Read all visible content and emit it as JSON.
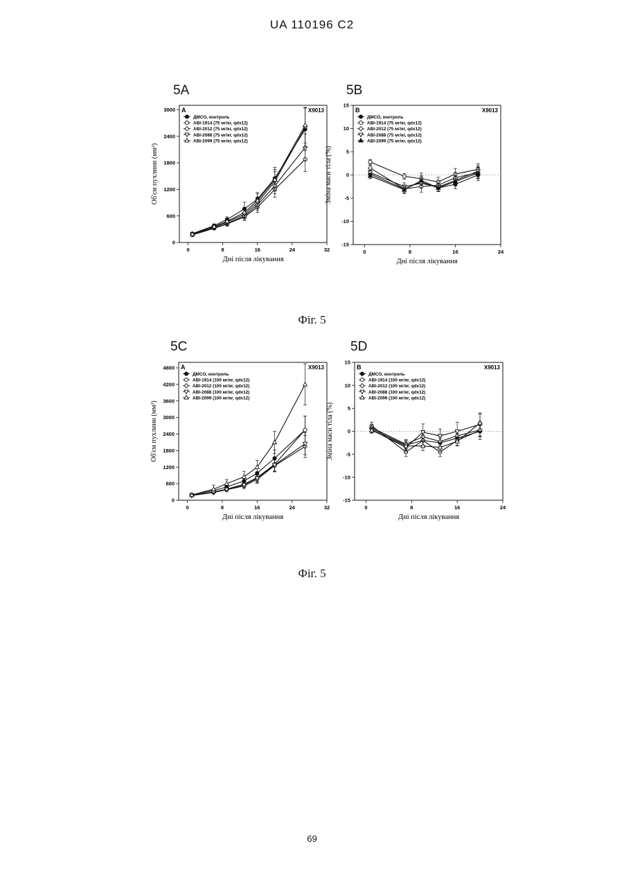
{
  "header": {
    "doc_id": "UA   110196   C2"
  },
  "figures": [
    {
      "caption": "Фіг. 5"
    },
    {
      "caption": "Фіг. 5"
    }
  ],
  "page_number": "69",
  "chart_data": [
    {
      "id": "5A",
      "type": "line",
      "panel_label": "5A",
      "inner_letter": "A",
      "model_label": "X9013",
      "xlabel": "Дні після лікування",
      "ylabel": "Об'єм пухлини (мм³)",
      "xlim": [
        -2,
        32
      ],
      "ylim": [
        0,
        3100
      ],
      "xticks": [
        0,
        8,
        16,
        24,
        32
      ],
      "yticks": [
        0,
        600,
        1200,
        1800,
        2400,
        3000
      ],
      "zero_line": false,
      "x": [
        1,
        6,
        9,
        13,
        16,
        20,
        27
      ],
      "series": [
        {
          "name": "ДМСО, контроль",
          "marker": "filled-circle",
          "values": [
            200,
            380,
            520,
            760,
            980,
            1450,
            2560
          ],
          "err": [
            20,
            40,
            60,
            150,
            150,
            250,
            480
          ]
        },
        {
          "name": "ABI-1914 (75 мг/кг, qdx12)",
          "marker": "open-circle",
          "values": [
            170,
            320,
            420,
            580,
            800,
            1200,
            1880
          ],
          "err": [
            15,
            30,
            50,
            80,
            120,
            180,
            280
          ]
        },
        {
          "name": "ABI-2012 (75 мг/кг, qdx12)",
          "marker": "open-diamond",
          "values": [
            180,
            330,
            430,
            600,
            850,
            1280,
            2150
          ],
          "err": [
            15,
            30,
            50,
            90,
            120,
            180,
            300
          ]
        },
        {
          "name": "ABI-2088 (75 мг/кг, qdx12)",
          "marker": "open-triangle-down",
          "values": [
            190,
            350,
            460,
            640,
            900,
            1380,
            2600
          ],
          "err": [
            15,
            35,
            55,
            100,
            130,
            220,
            450
          ]
        },
        {
          "name": "ABI-2099 (75 мг/кг, qdx12)",
          "marker": "open-triangle-up",
          "values": [
            185,
            360,
            480,
            680,
            950,
            1420,
            2650
          ],
          "err": [
            15,
            35,
            55,
            110,
            150,
            230,
            400
          ]
        }
      ]
    },
    {
      "id": "5B",
      "type": "line",
      "panel_label": "5B",
      "inner_letter": "B",
      "model_label": "X9013",
      "xlabel": "Дні після лікування",
      "ylabel": "Зміна маси тіла (%)",
      "xlim": [
        -2,
        24
      ],
      "ylim": [
        -15,
        15
      ],
      "xticks": [
        0,
        8,
        16,
        24
      ],
      "yticks": [
        -15,
        -10,
        -5,
        0,
        5,
        10,
        15
      ],
      "zero_line": true,
      "x": [
        1,
        7,
        10,
        13,
        16,
        20
      ],
      "series": [
        {
          "name": "ДМСО, контроль",
          "marker": "filled-circle",
          "values": [
            0.2,
            -3,
            -1.5,
            -2.8,
            -2,
            0
          ],
          "err": [
            0.6,
            0.8,
            1,
            0.8,
            1,
            1.2
          ]
        },
        {
          "name": "ABI-1914 (75 мг/кг, qdx12)",
          "marker": "open-circle",
          "values": [
            2.8,
            -0.3,
            -0.8,
            -1.5,
            0.2,
            1.2
          ],
          "err": [
            0.5,
            0.6,
            1.2,
            1,
            1.2,
            1.2
          ]
        },
        {
          "name": "ABI-2012 (75 мг/кг, qdx12)",
          "marker": "open-diamond",
          "values": [
            1.5,
            -3,
            -2.5,
            -2.2,
            -0.6,
            0.5
          ],
          "err": [
            0.6,
            0.8,
            1.2,
            0.8,
            1,
            1.2
          ]
        },
        {
          "name": "ABI-2088 (75 мг/кг, qdx12)",
          "marker": "open-triangle-down",
          "values": [
            0.5,
            -2.5,
            -1.8,
            -2.6,
            -1.2,
            0.8
          ],
          "err": [
            0.6,
            0.8,
            1,
            0.8,
            1,
            1.2
          ]
        },
        {
          "name": "ABI-2099 (75 мг/кг, qdx12)",
          "marker": "filled-triangle-up",
          "values": [
            -0.2,
            -3.2,
            -1.2,
            -2.8,
            -1.4,
            0.4
          ],
          "err": [
            0.6,
            0.8,
            1,
            0.8,
            1,
            1.2
          ]
        }
      ]
    },
    {
      "id": "5C",
      "type": "line",
      "panel_label": "5C",
      "inner_letter": "A",
      "model_label": "X9013",
      "xlabel": "Дні після лікування",
      "ylabel": "Об'єм пухлини (мм³)",
      "xlim": [
        -2,
        32
      ],
      "ylim": [
        0,
        5000
      ],
      "xticks": [
        0,
        8,
        16,
        24,
        32
      ],
      "yticks": [
        0,
        600,
        1200,
        1800,
        2400,
        3000,
        3600,
        4200,
        4800
      ],
      "zero_line": false,
      "x": [
        1,
        6,
        9,
        13,
        16,
        20,
        27
      ],
      "series": [
        {
          "name": "ДМСО, контроль",
          "marker": "filled-circle",
          "values": [
            200,
            350,
            480,
            700,
            980,
            1520,
            2550
          ],
          "err": [
            20,
            50,
            80,
            120,
            180,
            300,
            500
          ]
        },
        {
          "name": "ABI-1914 (100 мг/кг, qdx12)",
          "marker": "open-circle",
          "values": [
            180,
            300,
            400,
            580,
            820,
            1300,
            2550
          ],
          "err": [
            20,
            40,
            60,
            100,
            150,
            250,
            500
          ]
        },
        {
          "name": "ABI-2012 (100 мг/кг, qdx12)",
          "marker": "open-diamond",
          "values": [
            170,
            280,
            380,
            520,
            760,
            1250,
            1950
          ],
          "err": [
            20,
            40,
            60,
            100,
            150,
            220,
            400
          ]
        },
        {
          "name": "ABI-2088 (100 мг/кг, qdx12)",
          "marker": "open-triangle-down",
          "values": [
            175,
            290,
            390,
            560,
            800,
            1280,
            2050
          ],
          "err": [
            20,
            40,
            60,
            100,
            150,
            220,
            400
          ]
        },
        {
          "name": "ABI-2099 (100 мг/кг, qdx12)",
          "marker": "open-triangle-up",
          "values": [
            190,
            400,
            600,
            850,
            1200,
            2100,
            4200
          ],
          "err": [
            20,
            150,
            150,
            200,
            250,
            400,
            750
          ]
        }
      ]
    },
    {
      "id": "5D",
      "type": "line",
      "panel_label": "5D",
      "inner_letter": "B",
      "model_label": "X9013",
      "xlabel": "Дні після лікування",
      "ylabel": "Зміна маси тіла (%)",
      "xlim": [
        -2,
        24
      ],
      "ylim": [
        -15,
        15
      ],
      "xticks": [
        0,
        8,
        16,
        24
      ],
      "yticks": [
        -15,
        -10,
        -5,
        0,
        5,
        10,
        15
      ],
      "zero_line": true,
      "x": [
        1,
        7,
        10,
        13,
        16,
        20
      ],
      "series": [
        {
          "name": "ДМСО, контроль",
          "marker": "filled-circle",
          "values": [
            0.5,
            -3,
            -2,
            -2.5,
            -1.5,
            0
          ],
          "err": [
            0.6,
            1,
            1,
            1,
            1,
            1.2
          ]
        },
        {
          "name": "ABI-1914 (100 мг/кг, qdx12)",
          "marker": "open-circle",
          "values": [
            1.2,
            -4.5,
            -2,
            -4.5,
            -2,
            0.2
          ],
          "err": [
            0.8,
            1,
            1.2,
            1,
            1,
            2
          ]
        },
        {
          "name": "ABI-2012 (100 мг/кг, qdx12)",
          "marker": "open-diamond",
          "values": [
            0.8,
            -2.8,
            -1.2,
            -2.2,
            -1,
            0.3
          ],
          "err": [
            0.6,
            1,
            1,
            1,
            1.2,
            1.5
          ]
        },
        {
          "name": "ABI-2088 (100 мг/кг, qdx12)",
          "marker": "open-triangle-down",
          "values": [
            0.3,
            -3.5,
            -0.2,
            -1,
            0,
            1.5
          ],
          "err": [
            0.6,
            1,
            1.8,
            1.5,
            2,
            2.5
          ]
        },
        {
          "name": "ABI-2099 (100 мг/кг, qdx12)",
          "marker": "open-triangle-up",
          "values": [
            0.2,
            -3.2,
            -3.2,
            -3.5,
            -2.2,
            1.8
          ],
          "err": [
            0.6,
            1,
            1,
            1,
            1,
            2
          ]
        }
      ]
    }
  ]
}
